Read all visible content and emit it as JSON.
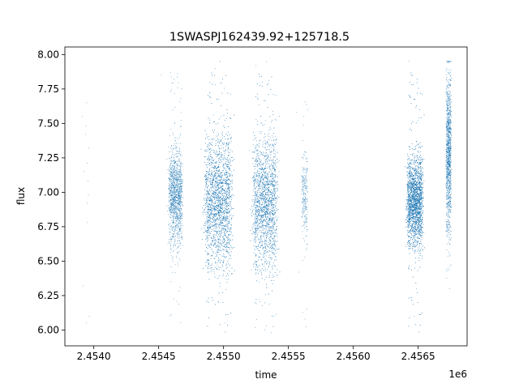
{
  "chart_data": {
    "type": "scatter",
    "title": "1SWASPJ162439.92+125718.5",
    "xlabel": "time",
    "ylabel": "flux",
    "x_offset_label": "1e6",
    "xlim": [
      2453777,
      2456877
    ],
    "ylim": [
      5.885,
      8.055
    ],
    "x_ticks": [
      {
        "value": 2454000,
        "label": "2.4540"
      },
      {
        "value": 2454500,
        "label": "2.4545"
      },
      {
        "value": 2455000,
        "label": "2.4550"
      },
      {
        "value": 2455500,
        "label": "2.4555"
      },
      {
        "value": 2456000,
        "label": "2.4560"
      },
      {
        "value": 2456500,
        "label": "2.4565"
      }
    ],
    "y_ticks": [
      {
        "value": 6.0,
        "label": "6.00"
      },
      {
        "value": 6.25,
        "label": "6.25"
      },
      {
        "value": 6.5,
        "label": "6.50"
      },
      {
        "value": 6.75,
        "label": "6.75"
      },
      {
        "value": 7.0,
        "label": "7.00"
      },
      {
        "value": 7.25,
        "label": "7.25"
      },
      {
        "value": 7.5,
        "label": "7.50"
      },
      {
        "value": 7.75,
        "label": "7.75"
      },
      {
        "value": 8.0,
        "label": "8.00"
      }
    ],
    "grid": false,
    "legend": "none",
    "marker_color": "#1f77b4",
    "series": [
      {
        "points": [
          [
            2453912,
            7.55
          ],
          [
            2453918,
            6.32
          ],
          [
            2453925,
            7.15
          ],
          [
            2453936,
            7.42
          ],
          [
            2453940,
            7.48
          ],
          [
            2453942,
            6.05
          ],
          [
            2453945,
            7.65
          ],
          [
            2453948,
            7.21
          ],
          [
            2453950,
            6.92
          ],
          [
            2453952,
            6.78
          ],
          [
            2453955,
            7.08
          ],
          [
            2453958,
            6.98
          ],
          [
            2453962,
            7.32
          ],
          [
            2453965,
            6.1
          ],
          [
            2454520,
            7.85
          ],
          [
            2454560,
            6.9
          ],
          [
            2454590,
            7.1
          ],
          [
            2454630,
            6.75
          ],
          [
            2454640,
            7.05
          ],
          [
            2454650,
            6.95
          ],
          [
            2454905,
            6.45
          ],
          [
            2454920,
            7.0
          ],
          [
            2454935,
            7.9
          ],
          [
            2454960,
            6.2
          ],
          [
            2454980,
            7.55
          ],
          [
            2455010,
            6.05
          ],
          [
            2455030,
            6.85
          ],
          [
            2455060,
            7.15
          ],
          [
            2455250,
            7.92
          ],
          [
            2455275,
            6.35
          ],
          [
            2455300,
            7.8
          ],
          [
            2455320,
            6.0
          ],
          [
            2455350,
            7.45
          ],
          [
            2455380,
            6.6
          ],
          [
            2455560,
            7.58
          ],
          [
            2455580,
            6.42
          ],
          [
            2455600,
            7.12
          ],
          [
            2455610,
            6.88
          ],
          [
            2455620,
            6.95
          ],
          [
            2455635,
            7.05
          ],
          [
            2456430,
            7.95
          ],
          [
            2456450,
            7.78
          ],
          [
            2456470,
            6.1
          ],
          [
            2456485,
            6.3
          ],
          [
            2456500,
            7.52
          ],
          [
            2456720,
            7.9
          ],
          [
            2456730,
            6.45
          ],
          [
            2456735,
            7.6
          ],
          [
            2456742,
            6.3
          ]
        ]
      }
    ],
    "clusters": [
      {
        "center": 2454630,
        "width": 95,
        "mean": 6.97,
        "sd": 0.17,
        "count": 1300
      },
      {
        "center": 2454960,
        "width": 190,
        "mean": 6.93,
        "sd": 0.24,
        "count": 3300
      },
      {
        "center": 2455320,
        "width": 170,
        "mean": 6.92,
        "sd": 0.24,
        "count": 2600
      },
      {
        "center": 2455625,
        "width": 40,
        "mean": 6.97,
        "sd": 0.16,
        "count": 230
      },
      {
        "center": 2456475,
        "width": 110,
        "mean": 6.93,
        "sd": 0.16,
        "count": 3600
      },
      {
        "center": 2456735,
        "width": 35,
        "mean": 7.28,
        "sd": 0.28,
        "count": 1200
      }
    ]
  }
}
